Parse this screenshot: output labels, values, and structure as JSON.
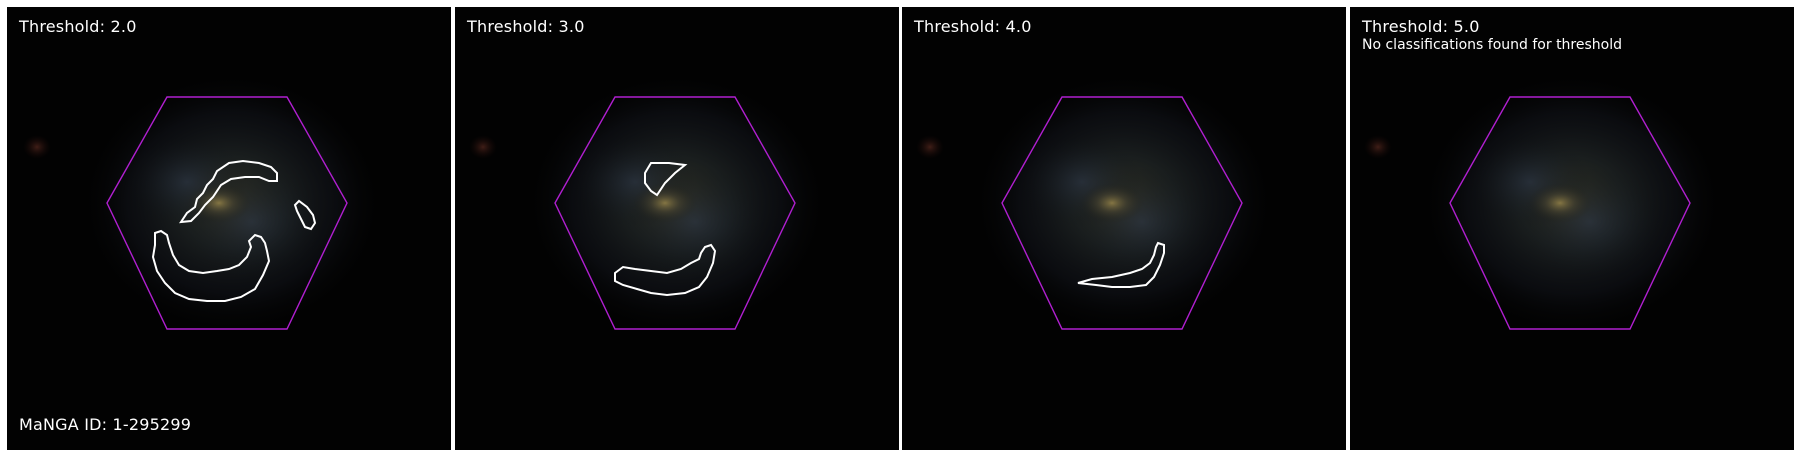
{
  "panels": [
    {
      "threshold_label": "Threshold: 2.0",
      "note": "",
      "id_label": "MaNGA ID: 1-295299"
    },
    {
      "threshold_label": "Threshold: 3.0",
      "note": "",
      "id_label": ""
    },
    {
      "threshold_label": "Threshold: 4.0",
      "note": "",
      "id_label": ""
    },
    {
      "threshold_label": "Threshold: 5.0",
      "note": "No classifications found for threshold",
      "id_label": ""
    }
  ],
  "colors": {
    "hexagon": "#b01fd0",
    "contour": "#ffffff",
    "background": "#020202",
    "separator": "#ffffff"
  }
}
